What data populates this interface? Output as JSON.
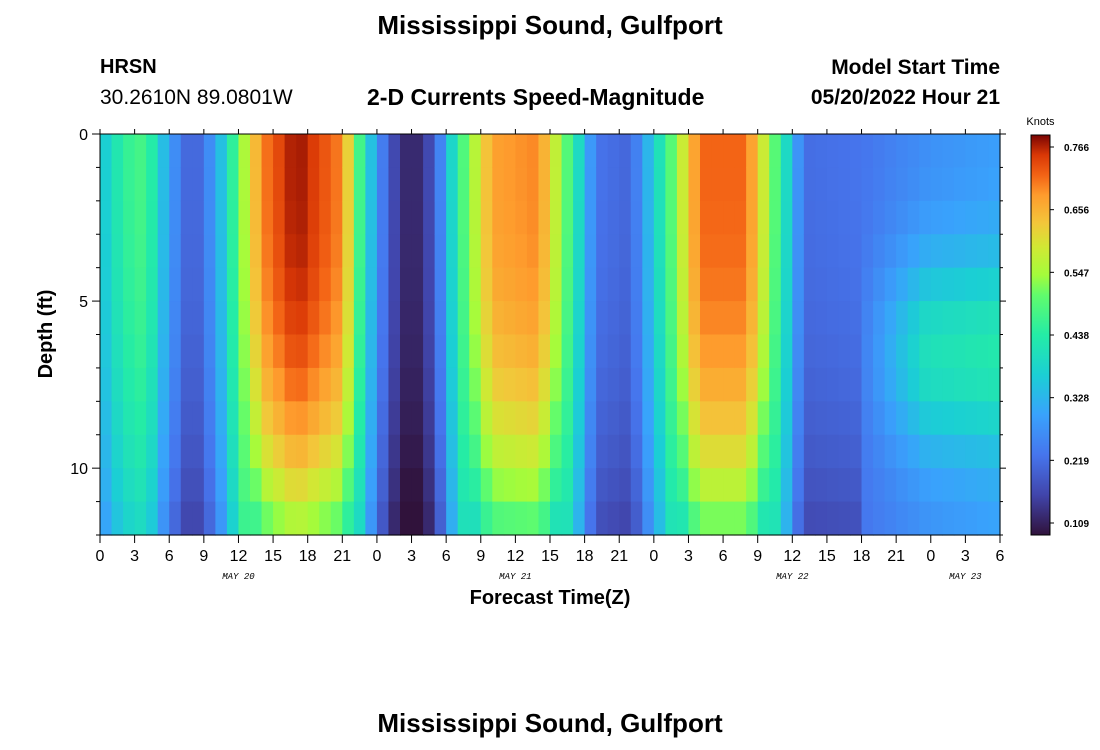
{
  "header": {
    "title_top": "Mississippi Sound, Gulfport",
    "station_id": "HRSN",
    "station_coords": "30.2610N  89.0801W",
    "plot_title": "2-D Currents Speed-Magnitude",
    "model_start_label": "Model Start Time",
    "model_start_value": "05/20/2022 Hour 21"
  },
  "footer": {
    "title_bottom": "Mississippi Sound, Gulfport"
  },
  "chart_data": {
    "type": "heatmap",
    "xlabel": "Forecast Time(Z)",
    "ylabel": "Depth (ft)",
    "x_ticks": [
      "0",
      "3",
      "6",
      "9",
      "12",
      "15",
      "18",
      "21",
      "0",
      "3",
      "6",
      "9",
      "12",
      "15",
      "18",
      "21",
      "0",
      "3",
      "6",
      "9",
      "12",
      "15",
      "18",
      "21",
      "0",
      "3",
      "6"
    ],
    "x_start_hour": 0,
    "x_end_hour": 78,
    "date_labels": [
      {
        "label": "MAY 20",
        "hour": 12
      },
      {
        "label": "MAY 21",
        "hour": 36
      },
      {
        "label": "MAY 22",
        "hour": 60
      },
      {
        "label": "MAY 23",
        "hour": 75
      }
    ],
    "y_ticks": [
      "0",
      "5",
      "10"
    ],
    "y_tick_values": [
      0,
      5,
      10
    ],
    "ylim": [
      0,
      12
    ],
    "y_reversed": true,
    "colorbar": {
      "label": "Knots",
      "ticks": [
        "0.766",
        "0.656",
        "0.547",
        "0.438",
        "0.328",
        "0.219",
        "0.109"
      ],
      "min": 0.109,
      "max": 0.766
    },
    "surface_speed_knots": [
      {
        "hour": 0,
        "v": 0.35
      },
      {
        "hour": 2,
        "v": 0.45
      },
      {
        "hour": 4,
        "v": 0.48
      },
      {
        "hour": 6,
        "v": 0.3
      },
      {
        "hour": 8,
        "v": 0.2
      },
      {
        "hour": 10,
        "v": 0.3
      },
      {
        "hour": 12,
        "v": 0.5
      },
      {
        "hour": 14,
        "v": 0.68
      },
      {
        "hour": 17,
        "v": 0.76
      },
      {
        "hour": 21,
        "v": 0.68
      },
      {
        "hour": 23,
        "v": 0.4
      },
      {
        "hour": 25,
        "v": 0.2
      },
      {
        "hour": 27,
        "v": 0.12
      },
      {
        "hour": 29,
        "v": 0.2
      },
      {
        "hour": 31,
        "v": 0.45
      },
      {
        "hour": 34,
        "v": 0.66
      },
      {
        "hour": 38,
        "v": 0.68
      },
      {
        "hour": 41,
        "v": 0.45
      },
      {
        "hour": 43,
        "v": 0.24
      },
      {
        "hour": 46,
        "v": 0.22
      },
      {
        "hour": 49,
        "v": 0.45
      },
      {
        "hour": 52,
        "v": 0.7
      },
      {
        "hour": 56,
        "v": 0.7
      },
      {
        "hour": 59,
        "v": 0.45
      },
      {
        "hour": 61,
        "v": 0.23
      },
      {
        "hour": 66,
        "v": 0.24
      },
      {
        "hour": 72,
        "v": 0.28
      },
      {
        "hour": 78,
        "v": 0.3
      }
    ]
  }
}
